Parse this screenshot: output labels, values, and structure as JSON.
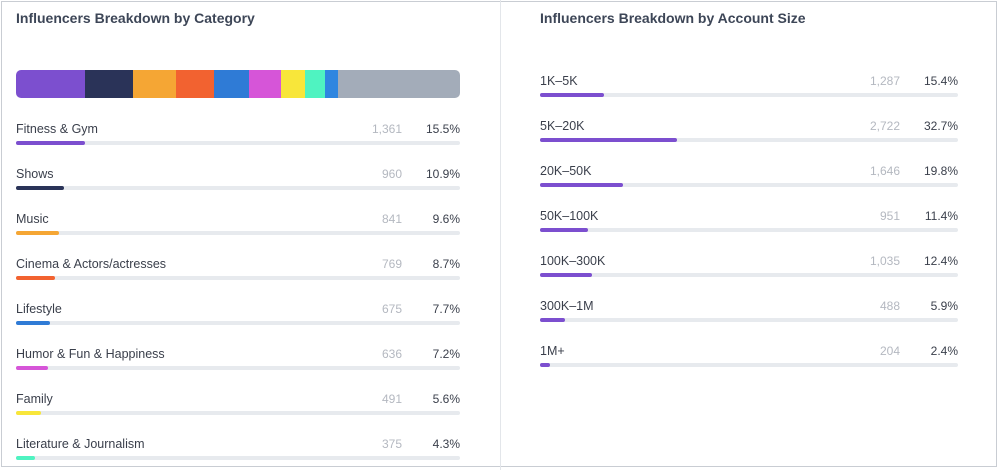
{
  "category_panel": {
    "title": "Influencers Breakdown by Category",
    "remainder_color": "#a3acb9",
    "items": [
      {
        "label": "Fitness & Gym",
        "count": "1,361",
        "pct": "15.5%",
        "share": 0.155,
        "color": "#7c4fcf"
      },
      {
        "label": "Shows",
        "count": "960",
        "pct": "10.9%",
        "share": 0.109,
        "color": "#2a3358"
      },
      {
        "label": "Music",
        "count": "841",
        "pct": "9.6%",
        "share": 0.096,
        "color": "#f5a634"
      },
      {
        "label": "Cinema & Actors/actresses",
        "count": "769",
        "pct": "8.7%",
        "share": 0.087,
        "color": "#f26230"
      },
      {
        "label": "Lifestyle",
        "count": "675",
        "pct": "7.7%",
        "share": 0.077,
        "color": "#2f7bd6"
      },
      {
        "label": "Humor & Fun & Happiness",
        "count": "636",
        "pct": "7.2%",
        "share": 0.072,
        "color": "#d655d8"
      },
      {
        "label": "Family",
        "count": "491",
        "pct": "5.6%",
        "share": 0.056,
        "color": "#f8e63a"
      },
      {
        "label": "Literature & Journalism",
        "count": "375",
        "pct": "4.3%",
        "share": 0.043,
        "color": "#4ff3c1"
      }
    ],
    "extra_segment_color": "#2f86e0",
    "extra_segment_share": 0.03
  },
  "size_panel": {
    "title": "Influencers Breakdown by Account Size",
    "bar_color": "#7c4fcf",
    "items": [
      {
        "label": "1K–5K",
        "count": "1,287",
        "pct": "15.4%",
        "share": 0.154
      },
      {
        "label": "5K–20K",
        "count": "2,722",
        "pct": "32.7%",
        "share": 0.327
      },
      {
        "label": "20K–50K",
        "count": "1,646",
        "pct": "19.8%",
        "share": 0.198
      },
      {
        "label": "50K–100K",
        "count": "951",
        "pct": "11.4%",
        "share": 0.114
      },
      {
        "label": "100K–300K",
        "count": "1,035",
        "pct": "12.4%",
        "share": 0.124
      },
      {
        "label": "300K–1M",
        "count": "488",
        "pct": "5.9%",
        "share": 0.059
      },
      {
        "label": "1M+",
        "count": "204",
        "pct": "2.4%",
        "share": 0.024
      }
    ]
  }
}
